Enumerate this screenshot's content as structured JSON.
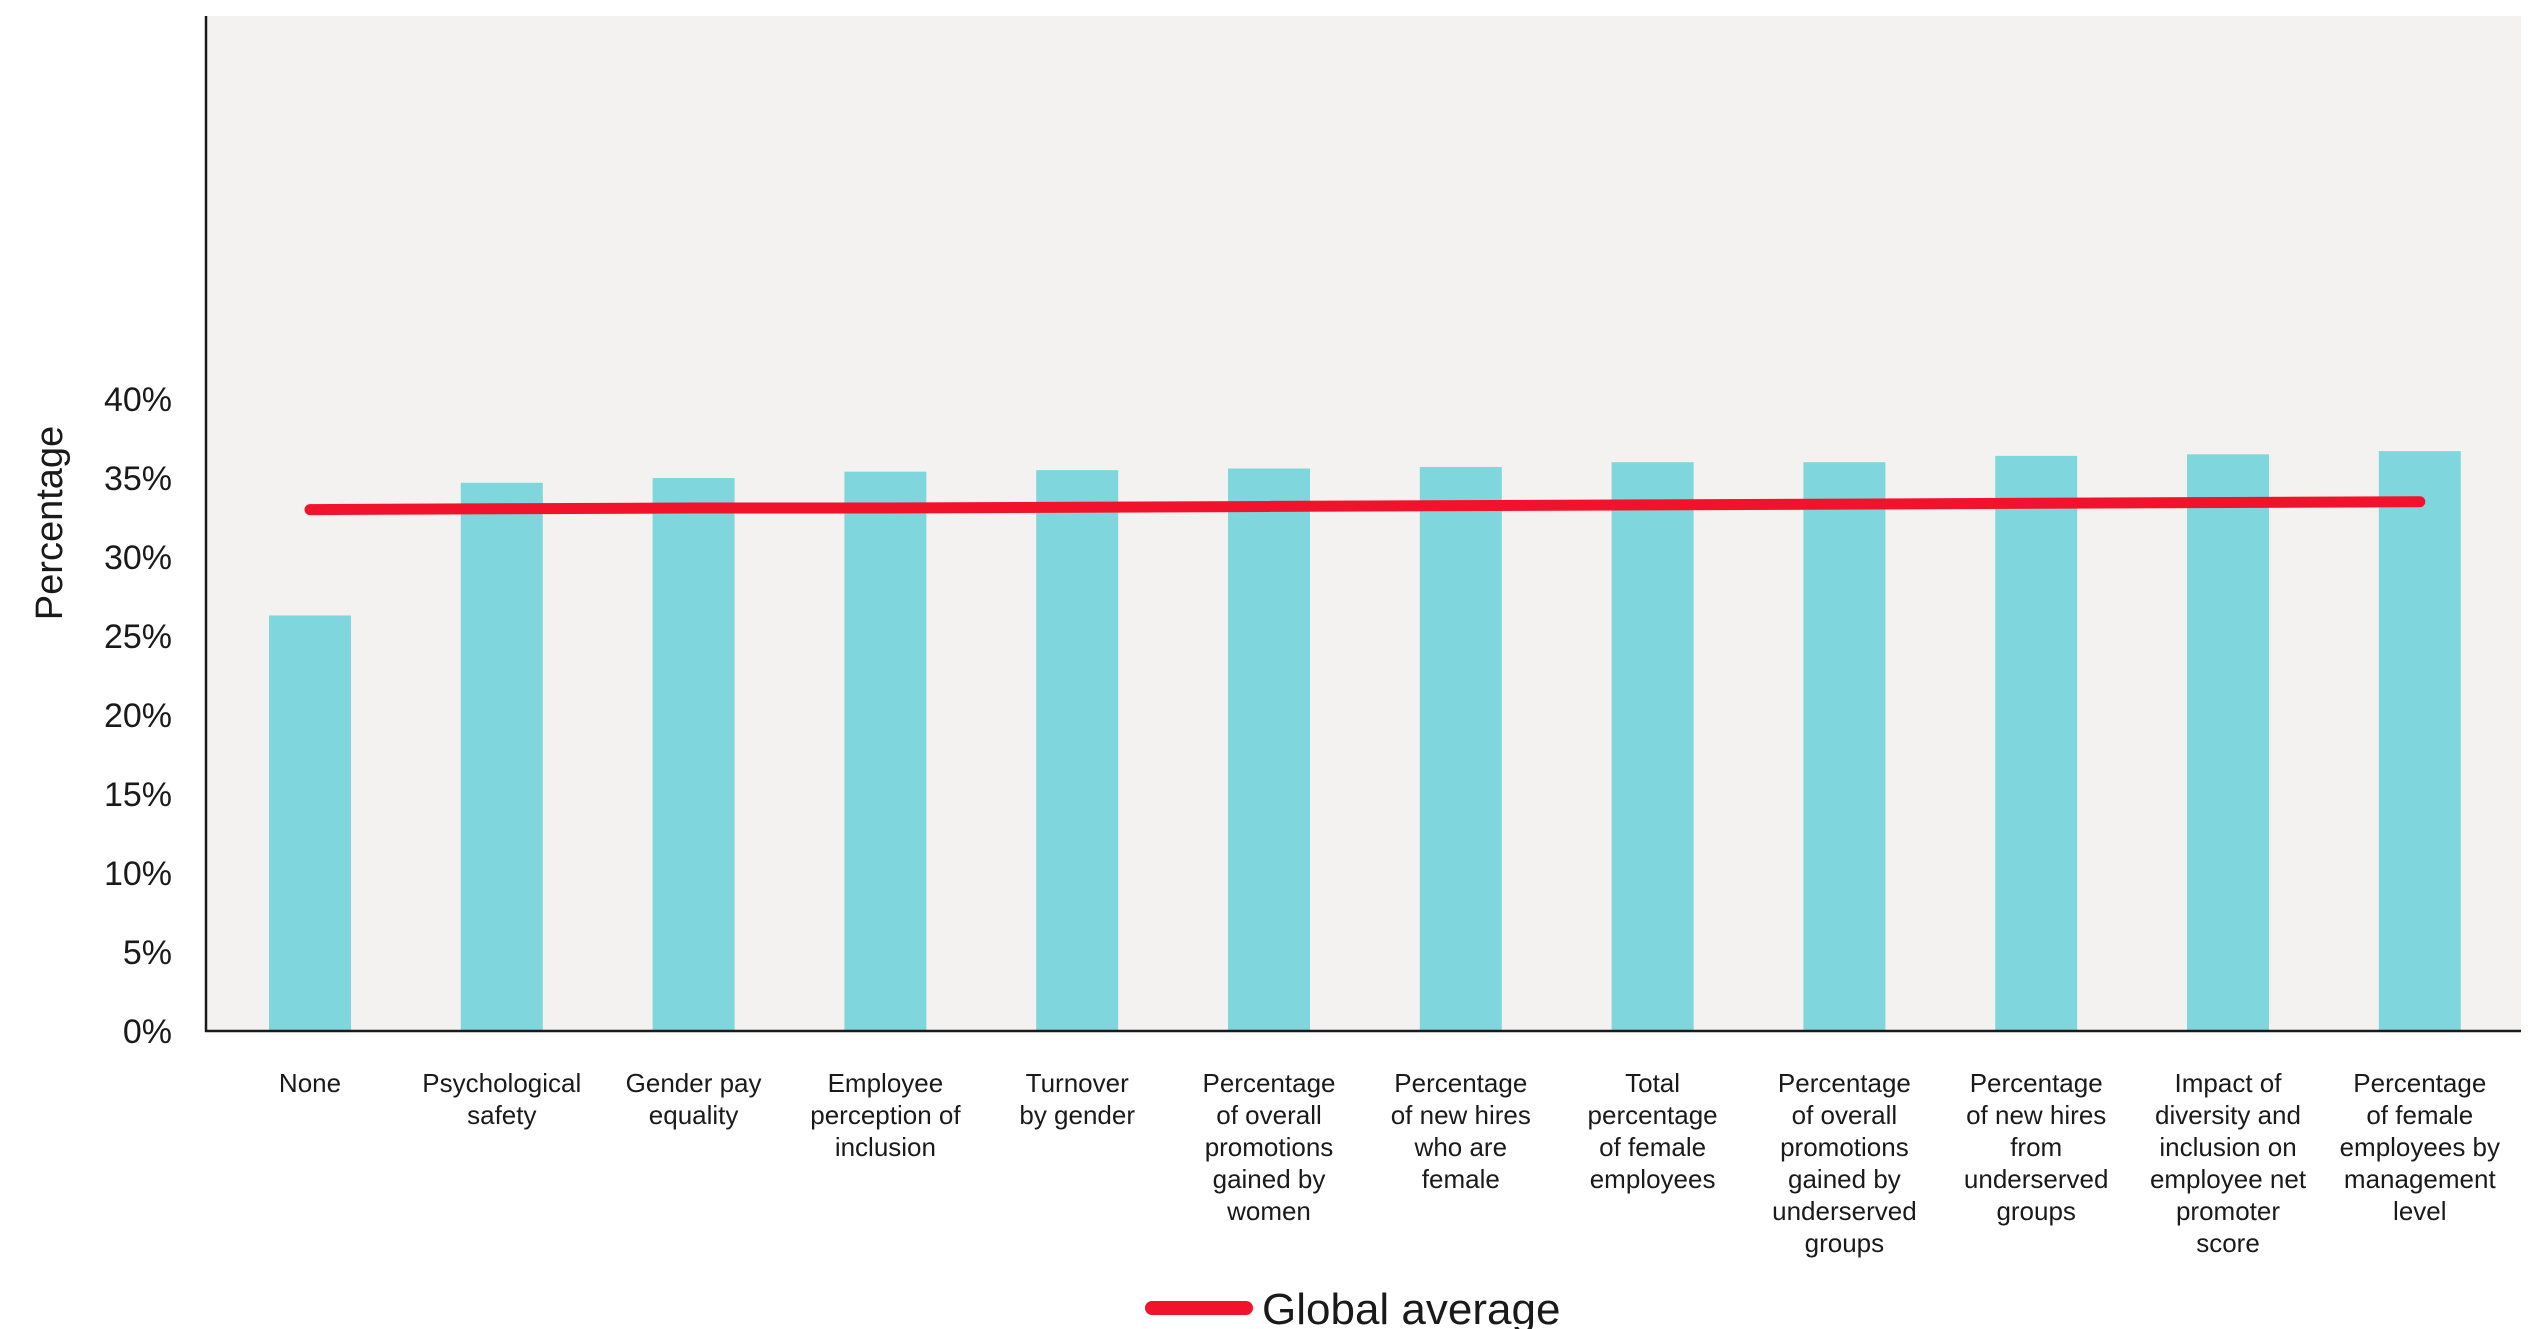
{
  "chart_data": {
    "type": "bar",
    "title": "",
    "xlabel": "",
    "ylabel": "Percentage",
    "ylim": [
      0,
      40
    ],
    "y_ticks": [
      "0%",
      "5%",
      "10%",
      "15%",
      "20%",
      "25%",
      "30%",
      "35%",
      "40%"
    ],
    "y_tick_values": [
      0,
      5,
      10,
      15,
      20,
      25,
      30,
      35,
      40
    ],
    "grid": false,
    "legend_position": "bottom-center",
    "categories": [
      [
        "None"
      ],
      [
        "Psychological",
        "safety"
      ],
      [
        "Gender pay",
        "equality"
      ],
      [
        "Employee",
        "perception of",
        "inclusion"
      ],
      [
        "Turnover",
        "by gender"
      ],
      [
        "Percentage",
        "of overall",
        "promotions",
        "gained by",
        "women"
      ],
      [
        "Percentage",
        "of new hires",
        "who are",
        "female"
      ],
      [
        "Total",
        "percentage",
        "of female",
        "employees"
      ],
      [
        "Percentage",
        "of overall",
        "promotions",
        "gained by",
        "underserved",
        "groups"
      ],
      [
        "Percentage",
        "of new hires",
        "from",
        "underserved",
        "groups"
      ],
      [
        "Impact of",
        "diversity and",
        "inclusion on",
        "employee net",
        "promoter",
        "score"
      ],
      [
        "Percentage",
        "of female",
        "employees by",
        "management",
        "level"
      ]
    ],
    "series": [
      {
        "type": "bar",
        "values": [
          26.3,
          34.7,
          35.0,
          35.4,
          35.5,
          35.6,
          35.7,
          36.0,
          36.0,
          36.4,
          36.5,
          36.7
        ],
        "color": "#80d6dd"
      },
      {
        "name": "Global average",
        "type": "line",
        "values": [
          33.0,
          33.05,
          33.1,
          33.1,
          33.15,
          33.2,
          33.25,
          33.3,
          33.35,
          33.4,
          33.45,
          33.5
        ],
        "color": "#f0132b"
      }
    ],
    "plot_background": "#f4f2f0"
  }
}
